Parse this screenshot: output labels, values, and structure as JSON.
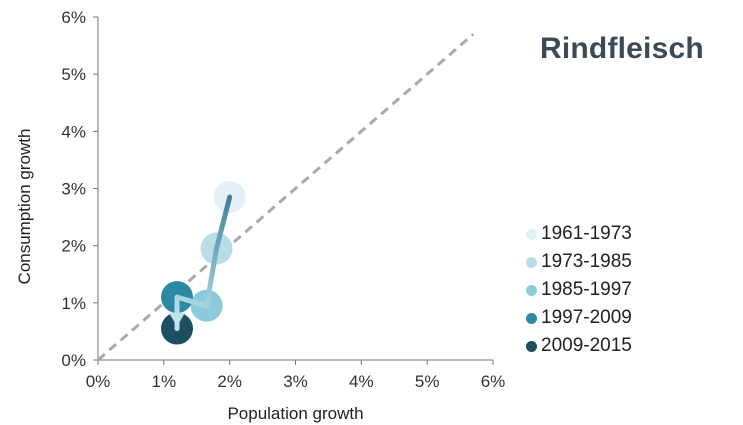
{
  "chart_data": {
    "type": "scatter",
    "title": "Rindfleisch",
    "xlabel": "Population growth",
    "ylabel": "Consumption growth",
    "xlim": [
      0,
      6
    ],
    "ylim": [
      0,
      6
    ],
    "xticks": [
      "0%",
      "1%",
      "2%",
      "3%",
      "4%",
      "5%",
      "6%"
    ],
    "yticks": [
      "0%",
      "1%",
      "2%",
      "3%",
      "4%",
      "5%",
      "6%"
    ],
    "grid": false,
    "legend_position": "right",
    "reference_line": {
      "style": "dashed",
      "color": "#aaaaaa",
      "from": [
        0,
        0
      ],
      "to": [
        5.7,
        5.7
      ]
    },
    "trajectory": {
      "color_start": "#3f7f95",
      "color_end": "#bde4ef",
      "arrow_end": true
    },
    "series": [
      {
        "name": "1961-1973",
        "x": 2.0,
        "y": 2.85,
        "color": "#e3f1f6"
      },
      {
        "name": "1973-1985",
        "x": 1.8,
        "y": 1.95,
        "color": "#b9dde7"
      },
      {
        "name": "1985-1997",
        "x": 1.65,
        "y": 0.95,
        "color": "#8ccbdb"
      },
      {
        "name": "1997-2009",
        "x": 1.2,
        "y": 1.1,
        "color": "#2d8aa4"
      },
      {
        "name": "2009-2015",
        "x": 1.2,
        "y": 0.55,
        "color": "#1d4e62"
      }
    ]
  }
}
